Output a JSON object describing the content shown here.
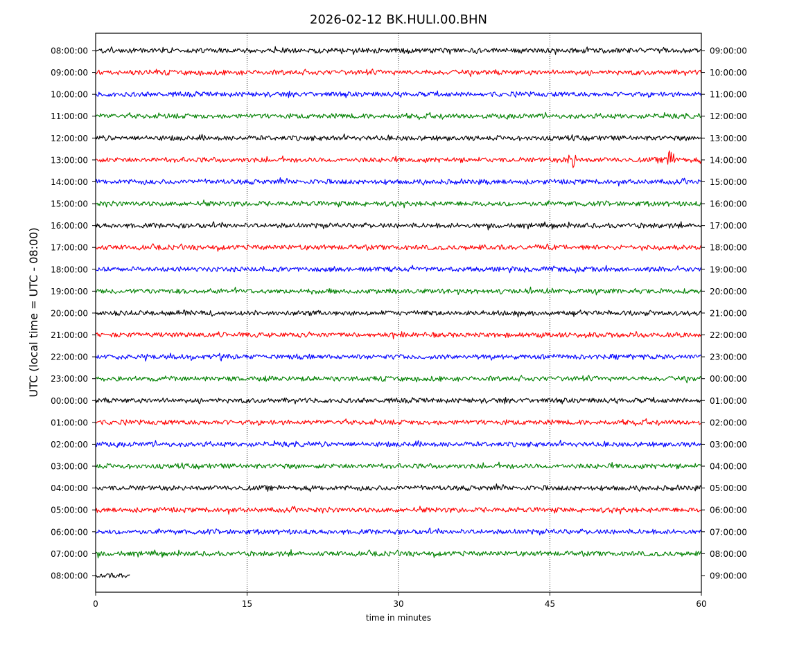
{
  "chart_data": {
    "type": "line",
    "title": "2026-02-12 BK.HULI.00.BHN",
    "xlabel": "time in minutes",
    "ylabel": "UTC (local time = UTC - 08:00)",
    "xlim": [
      0,
      60
    ],
    "x_ticks": [
      0,
      15,
      30,
      45,
      60
    ],
    "vertical_gridlines_at": [
      15,
      30,
      45
    ],
    "grid_style": "dotted vertical lines",
    "trace_colors": [
      "#000000",
      "#ff0000",
      "#0000ff",
      "#008000"
    ],
    "rows": [
      {
        "left_label": "08:00:00",
        "right_label": "09:00:00",
        "color": "#000000",
        "end_minute": 60
      },
      {
        "left_label": "09:00:00",
        "right_label": "10:00:00",
        "color": "#ff0000",
        "end_minute": 60
      },
      {
        "left_label": "10:00:00",
        "right_label": "11:00:00",
        "color": "#0000ff",
        "end_minute": 60
      },
      {
        "left_label": "11:00:00",
        "right_label": "12:00:00",
        "color": "#008000",
        "end_minute": 60
      },
      {
        "left_label": "12:00:00",
        "right_label": "13:00:00",
        "color": "#000000",
        "end_minute": 60
      },
      {
        "left_label": "13:00:00",
        "right_label": "14:00:00",
        "color": "#ff0000",
        "end_minute": 60,
        "events": [
          {
            "minute": 47.2,
            "strength": 0.9
          },
          {
            "minute": 57.0,
            "strength": 1.0
          }
        ]
      },
      {
        "left_label": "14:00:00",
        "right_label": "15:00:00",
        "color": "#0000ff",
        "end_minute": 60
      },
      {
        "left_label": "15:00:00",
        "right_label": "16:00:00",
        "color": "#008000",
        "end_minute": 60
      },
      {
        "left_label": "16:00:00",
        "right_label": "17:00:00",
        "color": "#000000",
        "end_minute": 60
      },
      {
        "left_label": "17:00:00",
        "right_label": "18:00:00",
        "color": "#ff0000",
        "end_minute": 60
      },
      {
        "left_label": "18:00:00",
        "right_label": "19:00:00",
        "color": "#0000ff",
        "end_minute": 60
      },
      {
        "left_label": "19:00:00",
        "right_label": "20:00:00",
        "color": "#008000",
        "end_minute": 60
      },
      {
        "left_label": "20:00:00",
        "right_label": "21:00:00",
        "color": "#000000",
        "end_minute": 60
      },
      {
        "left_label": "21:00:00",
        "right_label": "22:00:00",
        "color": "#ff0000",
        "end_minute": 60
      },
      {
        "left_label": "22:00:00",
        "right_label": "23:00:00",
        "color": "#0000ff",
        "end_minute": 60
      },
      {
        "left_label": "23:00:00",
        "right_label": "00:00:00",
        "color": "#008000",
        "end_minute": 60
      },
      {
        "left_label": "00:00:00",
        "right_label": "01:00:00",
        "color": "#000000",
        "end_minute": 60
      },
      {
        "left_label": "01:00:00",
        "right_label": "02:00:00",
        "color": "#ff0000",
        "end_minute": 60
      },
      {
        "left_label": "02:00:00",
        "right_label": "03:00:00",
        "color": "#0000ff",
        "end_minute": 60
      },
      {
        "left_label": "03:00:00",
        "right_label": "04:00:00",
        "color": "#008000",
        "end_minute": 60
      },
      {
        "left_label": "04:00:00",
        "right_label": "05:00:00",
        "color": "#000000",
        "end_minute": 60
      },
      {
        "left_label": "05:00:00",
        "right_label": "06:00:00",
        "color": "#ff0000",
        "end_minute": 60
      },
      {
        "left_label": "06:00:00",
        "right_label": "07:00:00",
        "color": "#0000ff",
        "end_minute": 60
      },
      {
        "left_label": "07:00:00",
        "right_label": "08:00:00",
        "color": "#008000",
        "end_minute": 60
      },
      {
        "left_label": "08:00:00",
        "right_label": "09:00:00",
        "color": "#000000",
        "end_minute": 3.4
      }
    ]
  }
}
